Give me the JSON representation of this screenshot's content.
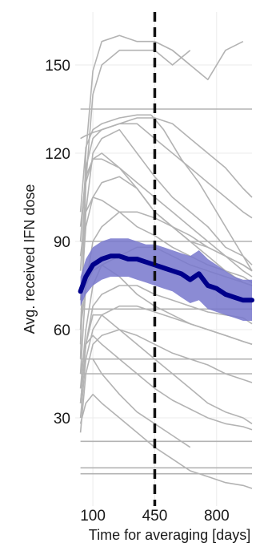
{
  "chart_data": {
    "type": "line",
    "title": "",
    "xlabel": "Time for averaging [days]",
    "ylabel": "Avg. received IFN dose",
    "xlim": [
      0,
      1000
    ],
    "ylim": [
      0,
      168
    ],
    "x_ticks": [
      100,
      450,
      800
    ],
    "y_ticks": [
      30,
      60,
      90,
      120,
      150
    ],
    "grid": true,
    "reference_line": {
      "x": 450,
      "style": "dashed",
      "color": "#111111"
    },
    "colors": {
      "individual": "#b3b3b3",
      "mean": "#00008b",
      "band": "#7777cc",
      "grid": "#ebebeb"
    },
    "individual_series": [
      {
        "x": [
          30,
          60,
          100,
          150,
          250,
          350,
          450,
          550,
          650
        ],
        "values": [
          55,
          120,
          148,
          158,
          160,
          158,
          158,
          155,
          150
        ]
      },
      {
        "x": [
          30,
          60,
          100,
          150,
          250,
          350,
          450,
          550,
          650
        ],
        "values": [
          50,
          110,
          140,
          150,
          155,
          155,
          155,
          150,
          155
        ]
      },
      {
        "x": [
          450,
          550,
          650,
          750,
          850,
          950
        ],
        "values": [
          158,
          155,
          150,
          145,
          155,
          158
        ]
      },
      {
        "x": [
          30,
          1000
        ],
        "values": [
          135,
          135
        ]
      },
      {
        "x": [
          30,
          60,
          100,
          150,
          250,
          350,
          430
        ],
        "values": [
          100,
          122,
          128,
          130,
          132,
          133,
          133
        ]
      },
      {
        "x": [
          430,
          500,
          600,
          700,
          800,
          900,
          1000
        ],
        "values": [
          133,
          128,
          118,
          110,
          100,
          90,
          80
        ]
      },
      {
        "x": [
          30,
          60,
          100,
          150,
          250,
          350,
          450,
          550,
          650,
          750,
          850,
          950,
          1000
        ],
        "values": [
          125,
          126,
          127,
          128,
          130,
          132,
          132,
          130,
          125,
          120,
          115,
          108,
          105
        ]
      },
      {
        "x": [
          30,
          60,
          100,
          150,
          250,
          350,
          450,
          550,
          650,
          750,
          850,
          950,
          1000
        ],
        "values": [
          90,
          115,
          125,
          128,
          130,
          130,
          125,
          120,
          115,
          110,
          105,
          100,
          98
        ]
      },
      {
        "x": [
          30,
          60,
          100,
          150,
          250,
          350,
          450,
          550,
          650,
          750,
          850,
          950,
          1000
        ],
        "values": [
          60,
          100,
          120,
          125,
          128,
          120,
          112,
          105,
          100,
          95,
          88,
          85,
          82
        ]
      },
      {
        "x": [
          30,
          60,
          100,
          150,
          250,
          350,
          450,
          550,
          650,
          750,
          850,
          950,
          1000
        ],
        "values": [
          80,
          110,
          118,
          120,
          115,
          108,
          100,
          95,
          92,
          88,
          85,
          82,
          80
        ]
      },
      {
        "x": [
          30,
          60,
          100,
          150,
          250,
          350,
          450,
          550,
          650,
          750,
          850,
          950,
          1000
        ],
        "values": [
          95,
          112,
          118,
          118,
          115,
          110,
          105,
          100,
          95,
          90,
          85,
          80,
          78
        ]
      },
      {
        "x": [
          30,
          60,
          100,
          150,
          250,
          350,
          450,
          550,
          650,
          750,
          850,
          950,
          1000
        ],
        "values": [
          70,
          95,
          105,
          110,
          112,
          108,
          100,
          95,
          90,
          85,
          80,
          76,
          75
        ]
      },
      {
        "x": [
          30,
          60,
          100,
          150,
          250,
          350,
          450,
          550,
          650,
          750,
          850,
          950,
          1000
        ],
        "values": [
          45,
          75,
          90,
          95,
          100,
          100,
          98,
          95,
          90,
          88,
          85,
          82,
          80
        ]
      },
      {
        "x": [
          30,
          1000
        ],
        "values": [
          90,
          90
        ]
      },
      {
        "x": [
          30,
          60,
          100,
          150,
          250,
          350,
          450,
          550,
          650,
          750,
          850,
          950,
          1000
        ],
        "values": [
          40,
          60,
          75,
          82,
          85,
          88,
          88,
          85,
          82,
          80,
          78,
          76,
          75
        ]
      },
      {
        "x": [
          30,
          60,
          100,
          150,
          250,
          350,
          450,
          550,
          650,
          750,
          850,
          950,
          1000
        ],
        "values": [
          35,
          55,
          68,
          72,
          75,
          75,
          72,
          70,
          68,
          66,
          65,
          64,
          62
        ]
      },
      {
        "x": [
          30,
          60,
          100,
          150,
          250,
          350,
          450,
          550,
          650,
          750,
          850,
          950,
          1000
        ],
        "values": [
          30,
          50,
          60,
          65,
          68,
          68,
          66,
          64,
          62,
          60,
          58,
          56,
          55
        ]
      },
      {
        "x": [
          30,
          60,
          100,
          150,
          250,
          350,
          450,
          550,
          650,
          750,
          850,
          950,
          1000
        ],
        "values": [
          25,
          45,
          55,
          58,
          60,
          58,
          55,
          52,
          50,
          48,
          45,
          43,
          42
        ]
      },
      {
        "x": [
          30,
          60,
          100,
          150,
          250,
          350,
          450,
          550,
          650,
          750,
          850,
          950,
          1000
        ],
        "values": [
          35,
          55,
          65,
          65,
          60,
          55,
          50,
          45,
          40,
          35,
          32,
          30,
          28
        ]
      },
      {
        "x": [
          30,
          60,
          100,
          150,
          250,
          350,
          450,
          550,
          650,
          750,
          850,
          950,
          1000
        ],
        "values": [
          45,
          55,
          58,
          55,
          50,
          45,
          40,
          36,
          33,
          30,
          28,
          27,
          26
        ]
      },
      {
        "x": [
          30,
          1000
        ],
        "values": [
          67,
          67
        ]
      },
      {
        "x": [
          30,
          1000
        ],
        "values": [
          50,
          50
        ]
      },
      {
        "x": [
          30,
          1000
        ],
        "values": [
          45,
          45
        ]
      },
      {
        "x": [
          30,
          1000
        ],
        "values": [
          22,
          22
        ]
      },
      {
        "x": [
          30,
          1000
        ],
        "values": [
          13,
          13
        ]
      },
      {
        "x": [
          30,
          1000
        ],
        "values": [
          11,
          11
        ]
      },
      {
        "x": [
          30,
          60,
          100,
          150,
          250,
          350,
          450,
          550,
          650
        ],
        "values": [
          40,
          50,
          50,
          45,
          38,
          32,
          28,
          24,
          20
        ]
      },
      {
        "x": [
          30,
          60,
          100,
          150,
          250,
          350,
          450,
          550,
          650,
          750,
          850,
          950,
          1000
        ],
        "values": [
          28,
          35,
          38,
          35,
          30,
          25,
          20,
          16,
          12,
          10,
          8,
          7,
          6
        ]
      },
      {
        "x": [
          30,
          60,
          100,
          150,
          250,
          350,
          450,
          550,
          650,
          750,
          850,
          950,
          1000
        ],
        "values": [
          60,
          75,
          80,
          82,
          78,
          72,
          68,
          65,
          62,
          60,
          58,
          56,
          55
        ]
      },
      {
        "x": [
          30,
          60,
          100,
          150,
          250,
          350,
          450,
          550,
          650,
          750,
          850,
          950,
          1000
        ],
        "values": [
          85,
          100,
          105,
          104,
          100,
          95,
          92,
          88,
          85,
          82,
          80,
          78,
          76
        ]
      }
    ],
    "series": [
      {
        "name": "",
        "x": [
          30,
          60,
          100,
          150,
          200,
          250,
          300,
          350,
          400,
          450,
          500,
          550,
          600,
          650,
          700,
          750,
          800,
          850,
          900,
          950,
          1000
        ],
        "values": [
          73,
          78,
          82,
          84,
          85,
          85,
          84,
          84,
          83,
          82,
          81,
          80,
          79,
          77,
          79,
          75,
          74,
          72,
          71,
          70,
          70
        ],
        "lower": [
          68,
          72,
          75,
          77,
          78,
          78,
          78,
          77,
          76,
          75,
          74,
          73,
          71,
          69,
          70,
          67,
          66,
          65,
          64,
          63,
          63
        ],
        "upper": [
          78,
          84,
          88,
          90,
          91,
          91,
          91,
          90,
          89,
          89,
          88,
          87,
          86,
          85,
          87,
          84,
          82,
          80,
          78,
          77,
          77
        ]
      }
    ]
  }
}
